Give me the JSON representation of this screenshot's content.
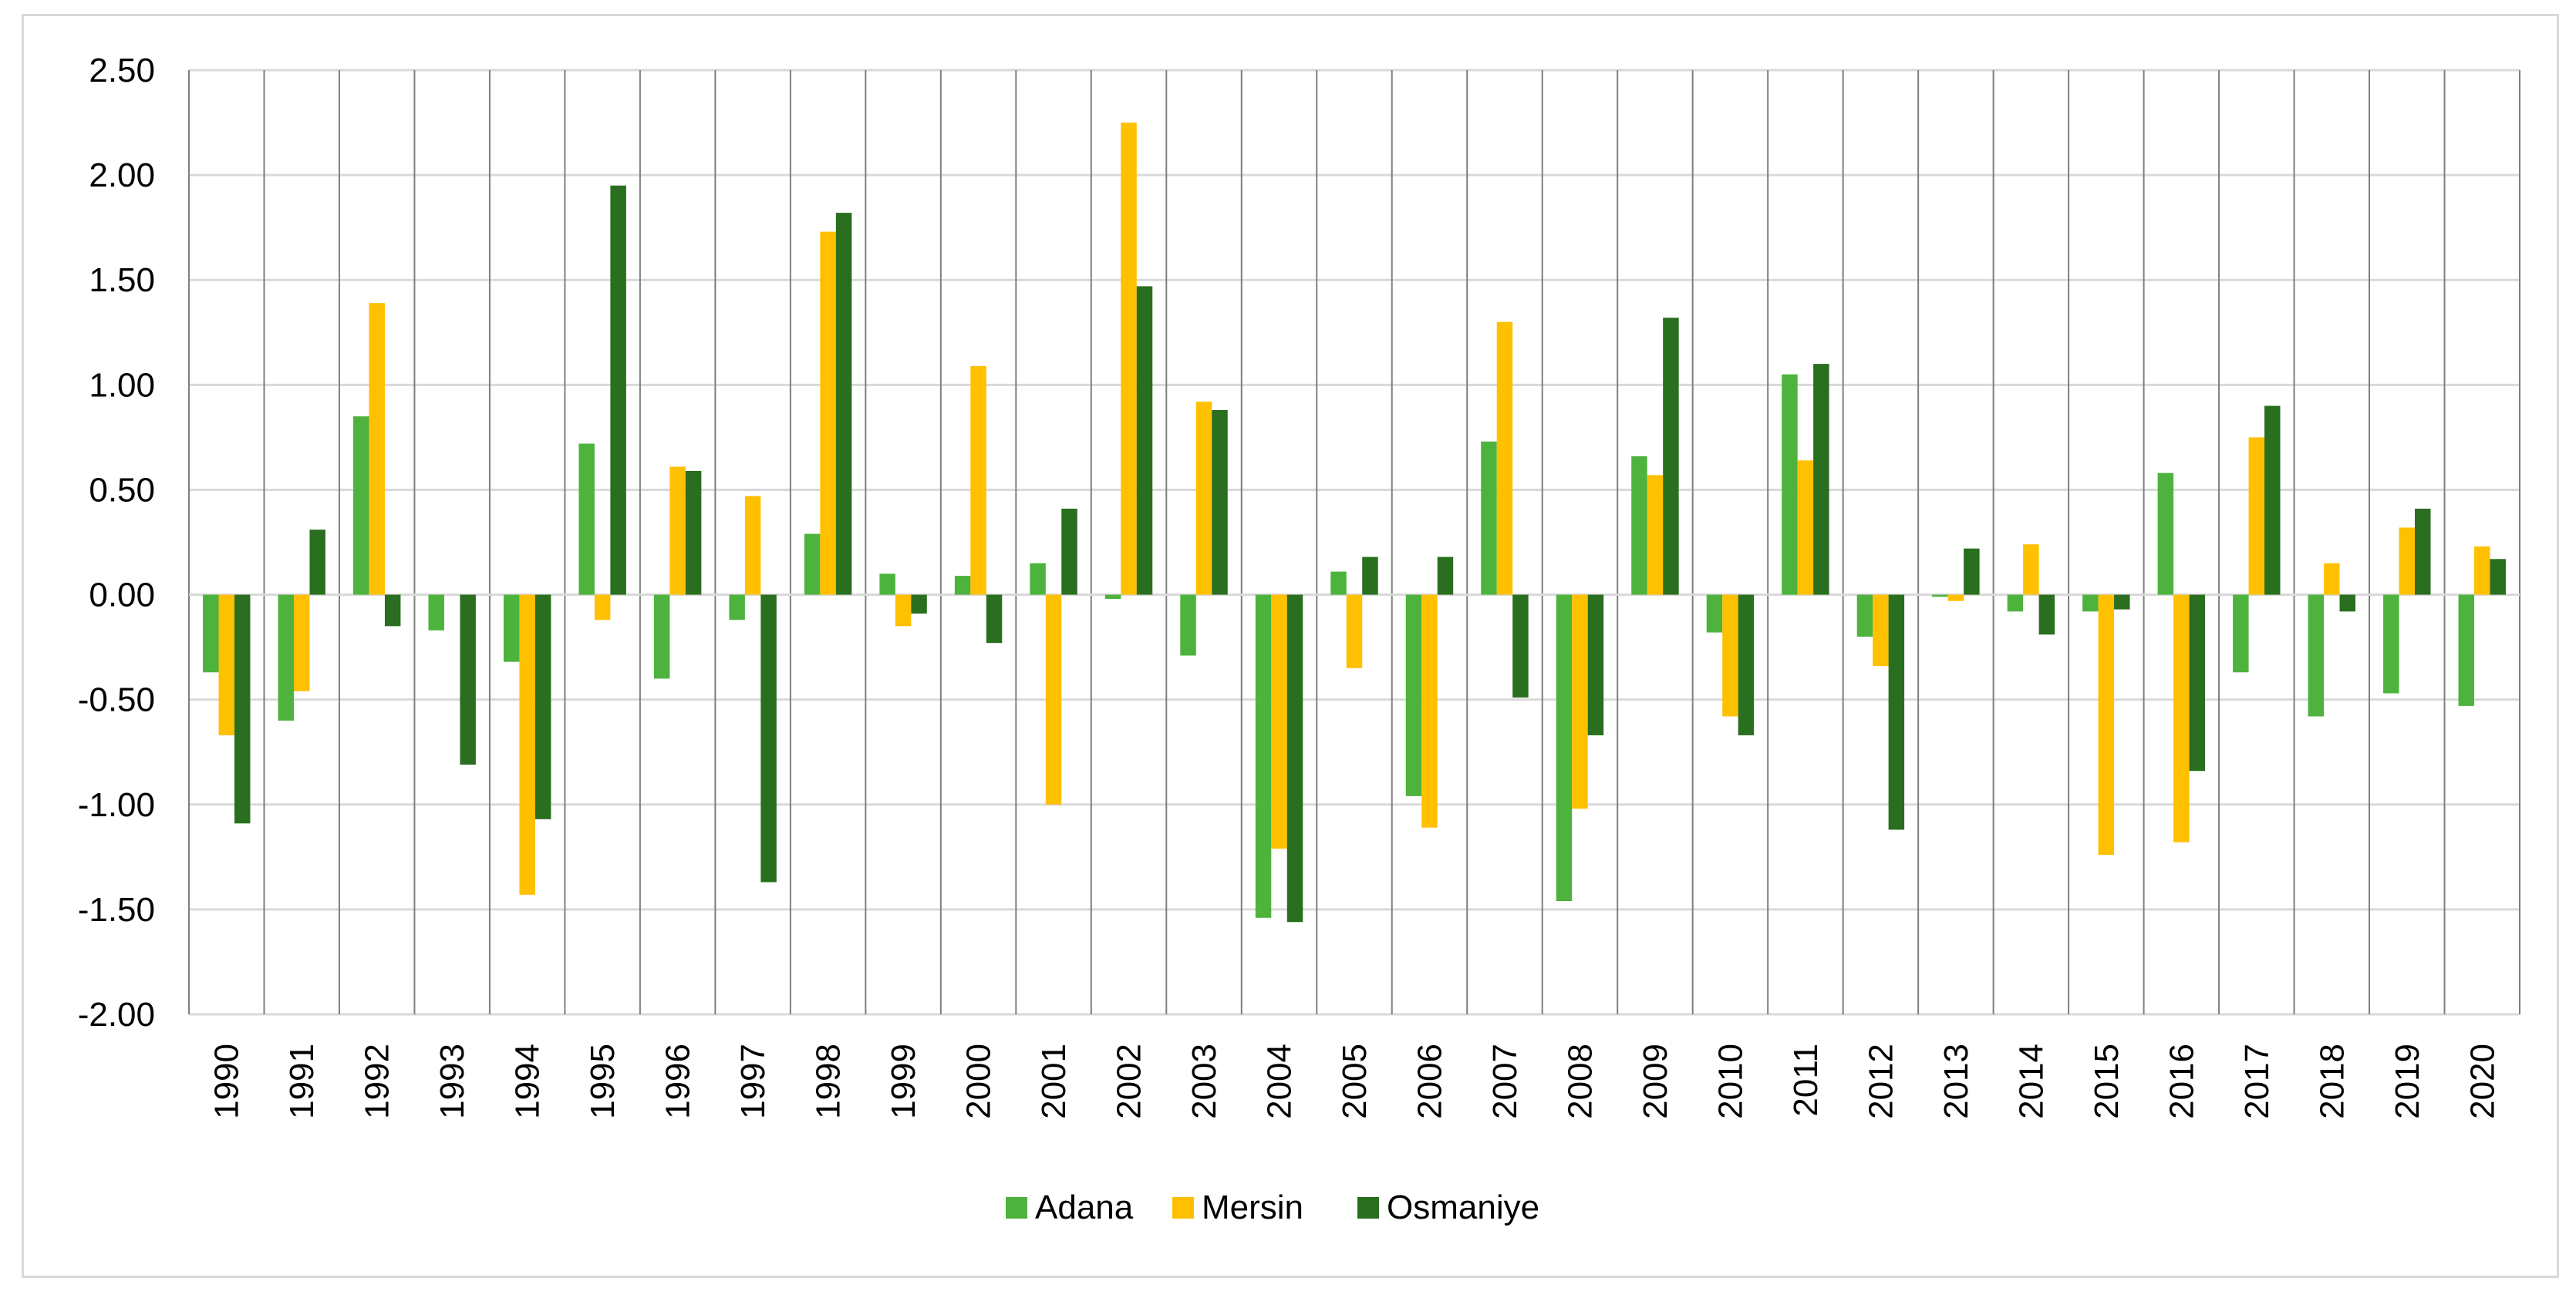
{
  "chart_data": {
    "type": "bar",
    "title": "",
    "xlabel": "",
    "ylabel": "",
    "ylim": [
      -2.0,
      2.5
    ],
    "ytick_step": 0.5,
    "grid": true,
    "legend_position": "bottom-center",
    "categories": [
      "1990",
      "1991",
      "1992",
      "1993",
      "1994",
      "1995",
      "1996",
      "1997",
      "1998",
      "1999",
      "2000",
      "2001",
      "2002",
      "2003",
      "2004",
      "2005",
      "2006",
      "2007",
      "2008",
      "2009",
      "2010",
      "2011",
      "2012",
      "2013",
      "2014",
      "2015",
      "2016",
      "2017",
      "2018",
      "2019",
      "2020"
    ],
    "series": [
      {
        "name": "Adana",
        "color": "#4db33d",
        "values": [
          -0.37,
          -0.6,
          0.85,
          -0.17,
          -0.32,
          0.72,
          -0.4,
          -0.12,
          0.29,
          0.1,
          0.09,
          0.15,
          -0.02,
          -0.29,
          -1.54,
          0.11,
          -0.96,
          0.73,
          -1.46,
          0.66,
          -0.18,
          1.05,
          -0.2,
          -0.01,
          -0.08,
          -0.08,
          0.58,
          -0.37,
          -0.58,
          -0.47,
          -0.53
        ]
      },
      {
        "name": "Mersin",
        "color": "#ffc000",
        "values": [
          -0.67,
          -0.46,
          1.39,
          0.0,
          -1.43,
          -0.12,
          0.61,
          0.47,
          1.73,
          -0.15,
          1.09,
          -1.0,
          2.25,
          0.92,
          -1.21,
          -0.35,
          -1.11,
          1.3,
          -1.02,
          0.57,
          -0.58,
          0.64,
          -0.34,
          -0.03,
          0.24,
          -1.24,
          -1.18,
          0.75,
          0.15,
          0.32,
          0.23
        ]
      },
      {
        "name": "Osmaniye",
        "color": "#2a6e1f",
        "values": [
          -1.09,
          0.31,
          -0.15,
          -0.81,
          -1.07,
          1.95,
          0.59,
          -1.37,
          1.82,
          -0.09,
          -0.23,
          0.41,
          1.47,
          0.88,
          -1.56,
          0.18,
          0.18,
          -0.49,
          -0.67,
          1.32,
          -0.67,
          1.1,
          -1.12,
          0.22,
          -0.19,
          -0.07,
          -0.84,
          0.9,
          -0.08,
          0.41,
          0.17
        ]
      }
    ]
  }
}
